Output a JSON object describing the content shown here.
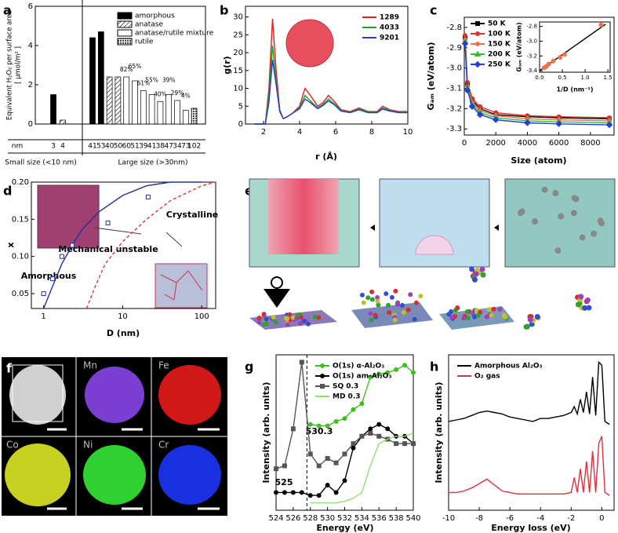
{
  "chart_data": [
    {
      "type": "bar",
      "panel": "a",
      "ylabel": [
        "Equivalent H₂O₂ per surface area",
        "[ μmol/m² ]"
      ],
      "ylim": [
        0,
        6
      ],
      "yticks": [
        0,
        2,
        4,
        6
      ],
      "unit_label": "nm",
      "categories": [
        "3",
        "4",
        "41",
        "53",
        "40",
        "50",
        "60",
        "51",
        "39",
        "41",
        "38",
        "47",
        "34",
        "73",
        "102"
      ],
      "groups": [
        "Small size (<10 nm)",
        "Large size (>30nm)"
      ],
      "series": [
        {
          "name": "amorphous",
          "color": "#000000",
          "pattern": "solid",
          "values": [
            1.5,
            null,
            4.4,
            4.7,
            null,
            null,
            null,
            null,
            null,
            null,
            null,
            null,
            null,
            null,
            null
          ]
        },
        {
          "name": "anatase",
          "color": "#000000",
          "pattern": "hatch",
          "values": [
            null,
            0.2,
            null,
            null,
            2.4,
            2.4,
            null,
            null,
            null,
            null,
            null,
            null,
            null,
            null,
            null
          ]
        },
        {
          "name": "anatase/rutile mixture",
          "color": "#000000",
          "pattern": "none",
          "values": [
            null,
            null,
            null,
            null,
            null,
            null,
            2.4,
            2.2,
            1.7,
            1.5,
            1.15,
            1.5,
            1.2,
            0.7,
            null
          ]
        },
        {
          "name": "rutile",
          "color": "#000000",
          "pattern": "cross",
          "values": [
            null,
            null,
            null,
            null,
            null,
            null,
            null,
            null,
            null,
            null,
            null,
            null,
            null,
            null,
            0.8
          ]
        }
      ],
      "rutile_fractions": [
        null,
        null,
        null,
        null,
        null,
        null,
        "82%",
        "65%",
        "61%",
        "55%",
        "40%",
        "39%",
        "29%",
        "4%",
        null
      ],
      "legend": true
    },
    {
      "type": "line",
      "panel": "b",
      "xlabel": "r (Å)",
      "ylabel": "g(r)",
      "xlim": [
        1,
        10
      ],
      "xticks": [
        2,
        4,
        6,
        8,
        10
      ],
      "ylim": [
        0,
        33
      ],
      "yticks": [
        0,
        5,
        10,
        15,
        20,
        25,
        30
      ],
      "x": [
        1.5,
        2.1,
        2.3,
        2.5,
        2.7,
        2.9,
        3.1,
        3.3,
        3.6,
        4.0,
        4.3,
        4.6,
        5.0,
        5.3,
        5.6,
        5.9,
        6.3,
        6.8,
        7.3,
        7.8,
        8.3,
        8.6,
        9.0,
        9.5,
        10
      ],
      "series": [
        {
          "name": "1289",
          "color": "#e02020",
          "values": [
            0,
            0,
            10,
            29.5,
            15,
            4,
            1.5,
            2,
            3,
            5,
            10,
            8,
            5,
            6,
            8,
            6.5,
            4,
            3.5,
            4.5,
            3.5,
            3.5,
            5,
            4,
            3.5,
            3.5
          ]
        },
        {
          "name": "4033",
          "color": "#20a020",
          "values": [
            0,
            0,
            8,
            22,
            12,
            3.5,
            1.5,
            2,
            3,
            4.5,
            8,
            6.5,
            4.5,
            5.5,
            7,
            5.8,
            3.8,
            3.3,
            4.2,
            3.3,
            3.3,
            4.5,
            3.8,
            3.3,
            3.3
          ]
        },
        {
          "name": "9201",
          "color": "#2040d0",
          "values": [
            0,
            0,
            6,
            18,
            11,
            3.5,
            1.5,
            2,
            3,
            4.3,
            7,
            6,
            4.3,
            5.2,
            6.5,
            5.5,
            3.6,
            3.2,
            4,
            3.2,
            3.2,
            4.2,
            3.6,
            3.2,
            3.2
          ]
        }
      ],
      "legend": "upper right"
    },
    {
      "type": "line",
      "panel": "c",
      "xlabel": "Size (atom)",
      "ylabel": "Gₐₘ (eV/atom)",
      "xlim": [
        0,
        9500
      ],
      "xticks": [
        0,
        2000,
        4000,
        6000,
        8000
      ],
      "ylim": [
        -3.33,
        -2.75
      ],
      "yticks": [
        -2.8,
        -2.9,
        {
          "value": -3,
          "label": "-3.0"
        },
        -3.1,
        -3.2,
        -3.3
      ],
      "x": [
        50,
        200,
        500,
        1000,
        2000,
        4000,
        6000,
        9200
      ],
      "series": [
        {
          "name": "50 K",
          "color": "#000000",
          "marker": "square",
          "values": [
            -2.85,
            -3.08,
            -3.16,
            -3.2,
            -3.23,
            -3.24,
            -3.245,
            -3.25
          ]
        },
        {
          "name": "100 K",
          "color": "#e03030",
          "marker": "circle",
          "values": [
            -2.84,
            -3.07,
            -3.15,
            -3.19,
            -3.22,
            -3.235,
            -3.24,
            -3.245
          ]
        },
        {
          "name": "150 K",
          "color": "#f07050",
          "marker": "circle",
          "values": [
            -2.86,
            -3.09,
            -3.17,
            -3.21,
            -3.235,
            -3.25,
            -3.255,
            -3.26
          ]
        },
        {
          "name": "200 K",
          "color": "#30c030",
          "marker": "triangle",
          "values": [
            -2.87,
            -3.1,
            -3.18,
            -3.22,
            -3.245,
            -3.26,
            -3.265,
            -3.27
          ]
        },
        {
          "name": "250 K",
          "color": "#2040e0",
          "marker": "diamond",
          "values": [
            -2.88,
            -3.11,
            -3.19,
            -3.23,
            -3.255,
            -3.27,
            -3.275,
            -3.28
          ]
        }
      ],
      "legend": "upper left"
    },
    {
      "type": "line",
      "xlabel": "1/D (nm⁻¹)",
      "ylabel": "Gₐₘ (eV/atom)",
      "xlim": [
        0,
        1.55
      ],
      "xticks": [
        {
          "value": 0,
          "label": "0.0"
        },
        0.5,
        {
          "value": 1,
          "label": "1.0"
        },
        1.5
      ],
      "ylim": [
        -3.42,
        -2.74
      ],
      "yticks": [
        -2.8,
        {
          "value": -3,
          "label": "-3.0"
        },
        -3.2,
        -3.4
      ],
      "x": [
        0.1,
        0.15,
        0.2,
        0.3,
        0.45,
        0.55,
        1.35
      ],
      "series": [
        {
          "color": "#000000",
          "x": [
            0,
            1.45
          ],
          "values": [
            -3.4,
            -2.77
          ]
        },
        {
          "color": "#f07050",
          "marker": "circle",
          "line": false,
          "values": [
            -3.36,
            -3.34,
            -3.31,
            -3.27,
            -3.22,
            -3.18,
            -2.78
          ]
        }
      ]
    },
    {
      "type": "line",
      "panel": "d",
      "xlog": true,
      "xlabel": "D (nm)",
      "ylabel": "x",
      "xlim": [
        0.7,
        150
      ],
      "xticks": [
        1,
        10,
        100
      ],
      "ylim": [
        0.03,
        0.2
      ],
      "yticks": [
        0.05,
        {
          "value": 0.1,
          "label": "0.10"
        },
        0.15,
        {
          "value": 0.2,
          "label": "0.20"
        }
      ],
      "annotations": [
        "Amorphous",
        "Mechanical unstable",
        "Crystalline"
      ],
      "series": [
        {
          "color": "#2030a0",
          "x": [
            1,
            1.3,
            1.7,
            2.3,
            3,
            5,
            10,
            20,
            40,
            100
          ],
          "values": [
            0.03,
            0.06,
            0.09,
            0.115,
            0.135,
            0.16,
            0.182,
            0.195,
            0.2,
            0.2
          ]
        },
        {
          "color": "#e03040",
          "dash": true,
          "x": [
            3.5,
            4.5,
            6,
            10,
            20,
            40,
            100,
            150
          ],
          "values": [
            0.03,
            0.06,
            0.09,
            0.12,
            0.15,
            0.175,
            0.195,
            0.2
          ]
        },
        {
          "color": "#2030a0",
          "line": false,
          "marker": "square",
          "hollow": true,
          "x": [
            1,
            1.3,
            1.7,
            2.3,
            6.5,
            21
          ],
          "values": [
            0.05,
            0.07,
            0.1,
            0.115,
            0.145,
            0.18
          ]
        }
      ]
    },
    {
      "type": "line",
      "panel": "g",
      "xlabel": "Energy (eV)",
      "ylabel": "Intensity (arb. units)",
      "xlim": [
        524,
        540
      ],
      "xticks": [
        524,
        526,
        528,
        530,
        532,
        534,
        536,
        538,
        540
      ],
      "ylim": [
        0,
        1.05
      ],
      "vline": 527.6,
      "annotations": [
        "530.3",
        "525"
      ],
      "x": [
        524,
        525,
        526,
        527,
        528,
        529,
        530,
        531,
        532,
        533,
        534,
        535,
        536,
        537,
        538,
        539,
        540
      ],
      "series": [
        {
          "name": "O(1s) α-Al₂O₃",
          "color": "#40c020",
          "marker": "circle",
          "values": [
            null,
            null,
            null,
            null,
            0.58,
            0.57,
            0.57,
            0.6,
            0.62,
            0.68,
            0.72,
            0.9,
            0.92,
            0.93,
            0.95,
            0.98,
            0.93
          ]
        },
        {
          "name": "O(1s) am-Al₂O₃",
          "color": "#000000",
          "marker": "circle",
          "values": [
            0.12,
            0.12,
            0.12,
            0.12,
            0.1,
            0.1,
            0.17,
            0.12,
            0.2,
            0.42,
            0.5,
            0.55,
            0.58,
            0.55,
            0.5,
            0.5,
            0.45
          ]
        },
        {
          "name": "SQ 0.3",
          "color": "#555555",
          "marker": "square",
          "values": [
            0.28,
            0.3,
            0.55,
            1.0,
            0.38,
            0.3,
            0.35,
            0.32,
            0.38,
            0.45,
            0.5,
            0.52,
            0.5,
            0.48,
            0.45,
            0.45,
            0.45
          ]
        },
        {
          "name": "MD 0.3",
          "color": "#90e070",
          "values": [
            null,
            null,
            null,
            null,
            0.05,
            0.05,
            0.05,
            0.05,
            0.06,
            0.08,
            0.12,
            0.3,
            0.45,
            0.48,
            0.5,
            0.5,
            0.52
          ]
        }
      ],
      "legend": "upper left"
    },
    {
      "type": "line",
      "panel": "h",
      "xlabel": "Energy loss (eV)",
      "ylabel": "Intensity (arb. units)",
      "xlim": [
        -10,
        0.8
      ],
      "xticks": [
        -10,
        -8,
        -6,
        -4,
        -2,
        0
      ],
      "ylim": [
        0,
        1.05
      ],
      "x": [
        -10,
        -9.5,
        -9,
        -8.5,
        -8,
        -7.5,
        -7,
        -6.5,
        -6,
        -5.5,
        -5,
        -4.5,
        -4,
        -3.5,
        -3,
        -2.5,
        -2,
        -1.8,
        -1.6,
        -1.4,
        -1.2,
        -1.0,
        -0.8,
        -0.6,
        -0.4,
        -0.2,
        0,
        0.2,
        0.5
      ],
      "series": [
        {
          "name": "Amorphous Al₂O₃",
          "color": "#000000",
          "values": [
            0.6,
            0.61,
            0.62,
            0.64,
            0.66,
            0.67,
            0.66,
            0.65,
            0.63,
            0.62,
            0.61,
            0.6,
            0.62,
            0.62,
            0.63,
            0.64,
            0.66,
            0.7,
            0.65,
            0.75,
            0.66,
            0.8,
            0.65,
            0.9,
            0.64,
            1.0,
            0.98,
            0.6,
            0.58
          ]
        },
        {
          "name": "O₂ gas",
          "color": "#e03040",
          "values": [
            0.12,
            0.12,
            0.13,
            0.15,
            0.18,
            0.21,
            0.17,
            0.13,
            0.12,
            0.11,
            0.11,
            0.11,
            0.11,
            0.11,
            0.11,
            0.11,
            0.12,
            0.22,
            0.12,
            0.28,
            0.12,
            0.33,
            0.12,
            0.4,
            0.12,
            0.45,
            0.5,
            0.12,
            0.1
          ]
        }
      ],
      "legend": "upper left"
    }
  ],
  "panels": {
    "e": {
      "label": "e"
    },
    "f": {
      "label": "f",
      "maps": [
        "Mn",
        "Fe",
        "Co",
        "Ni",
        "Cr"
      ]
    }
  }
}
